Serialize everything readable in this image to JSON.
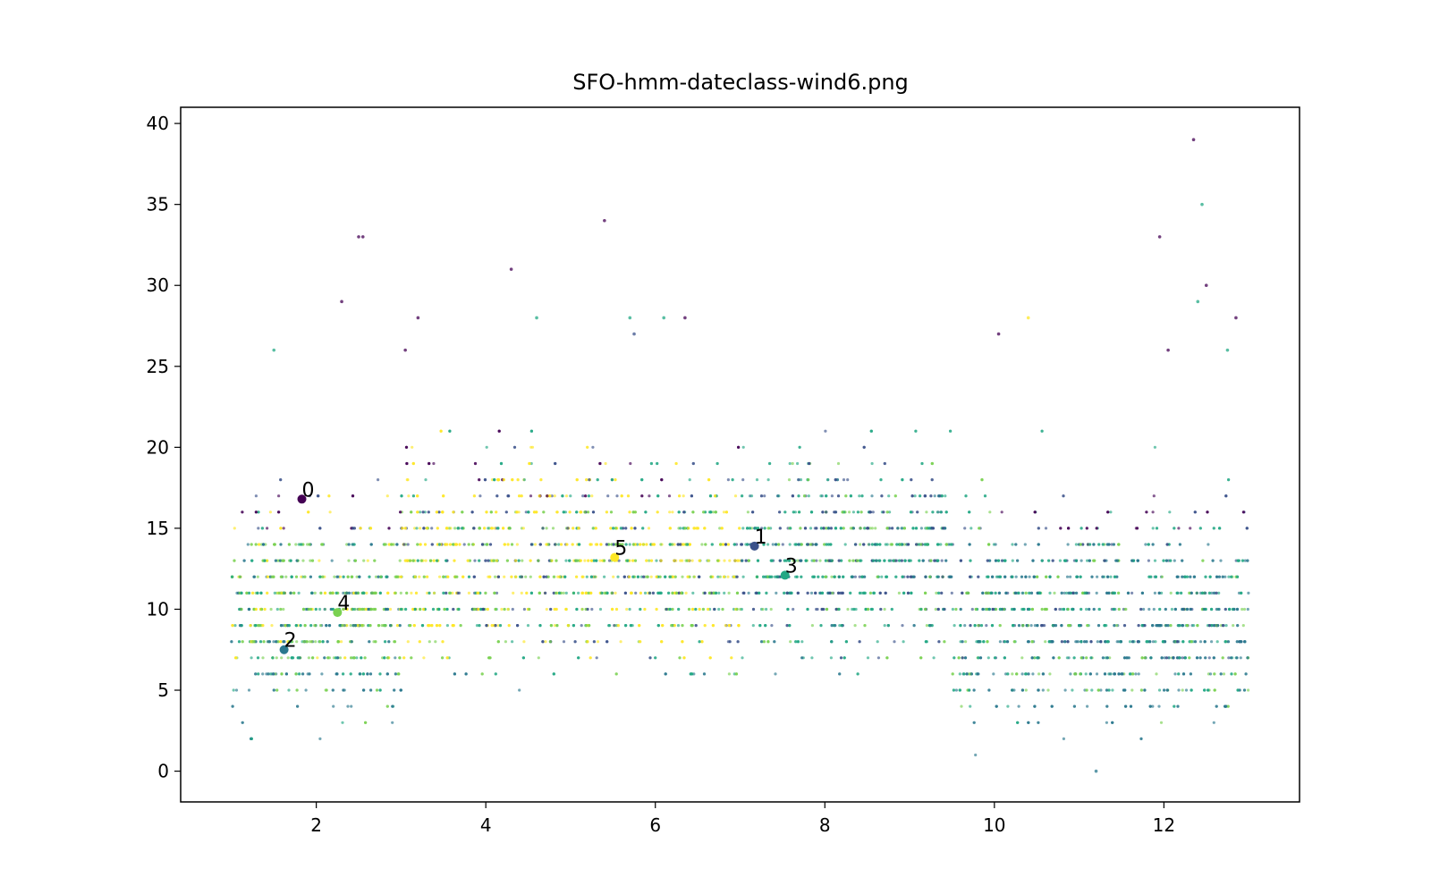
{
  "chart_data": {
    "type": "scatter",
    "title": "SFO-hmm-dateclass-wind6.png",
    "xlabel": "",
    "ylabel": "",
    "xlim": [
      0.4,
      13.6
    ],
    "ylim": [
      -1.9,
      41.0
    ],
    "x_ticks": [
      2,
      4,
      6,
      8,
      10,
      12
    ],
    "y_ticks": [
      0,
      5,
      10,
      15,
      20,
      25,
      30,
      35,
      40
    ],
    "grid": false,
    "legend": "none",
    "colormap": [
      "#440154",
      "#3b528b",
      "#21918c",
      "#1f9e89",
      "#5ec962",
      "#fde725"
    ],
    "cluster_colors": {
      "0": "#440154",
      "1": "#3b528b",
      "2": "#2a788e",
      "3": "#22a884",
      "4": "#7ad151",
      "5": "#fde725"
    },
    "point_cloud": {
      "x_range": [
        1.0,
        13.0
      ],
      "y_values": "integers 0-39",
      "description_note": ""
    },
    "outliers": [
      {
        "x": 12.35,
        "y": 39,
        "cluster": "0"
      },
      {
        "x": 12.45,
        "y": 35,
        "cluster": "3"
      },
      {
        "x": 5.4,
        "y": 34,
        "cluster": "0"
      },
      {
        "x": 2.5,
        "y": 33,
        "cluster": "0"
      },
      {
        "x": 2.55,
        "y": 33,
        "cluster": "0"
      },
      {
        "x": 11.95,
        "y": 33,
        "cluster": "0"
      },
      {
        "x": 4.3,
        "y": 31,
        "cluster": "0"
      },
      {
        "x": 12.5,
        "y": 30,
        "cluster": "0"
      },
      {
        "x": 2.3,
        "y": 29,
        "cluster": "0"
      },
      {
        "x": 12.4,
        "y": 29,
        "cluster": "3"
      },
      {
        "x": 3.2,
        "y": 28,
        "cluster": "0"
      },
      {
        "x": 4.6,
        "y": 28,
        "cluster": "3"
      },
      {
        "x": 5.7,
        "y": 28,
        "cluster": "3"
      },
      {
        "x": 6.1,
        "y": 28,
        "cluster": "3"
      },
      {
        "x": 6.35,
        "y": 28,
        "cluster": "0"
      },
      {
        "x": 10.4,
        "y": 28,
        "cluster": "5"
      },
      {
        "x": 12.85,
        "y": 28,
        "cluster": "0"
      },
      {
        "x": 5.75,
        "y": 27,
        "cluster": "1"
      },
      {
        "x": 10.05,
        "y": 27,
        "cluster": "0"
      },
      {
        "x": 1.5,
        "y": 26,
        "cluster": "3"
      },
      {
        "x": 3.05,
        "y": 26,
        "cluster": "0"
      },
      {
        "x": 12.05,
        "y": 26,
        "cluster": "0"
      },
      {
        "x": 12.75,
        "y": 26,
        "cluster": "3"
      },
      {
        "x": 11.2,
        "y": 0,
        "cluster": "2"
      }
    ],
    "centroids": [
      {
        "label": "0",
        "x": 1.83,
        "y": 16.8,
        "cluster": "0"
      },
      {
        "label": "1",
        "x": 7.17,
        "y": 13.9,
        "cluster": "1"
      },
      {
        "label": "2",
        "x": 1.62,
        "y": 7.5,
        "cluster": "2"
      },
      {
        "label": "3",
        "x": 7.53,
        "y": 12.1,
        "cluster": "3"
      },
      {
        "label": "4",
        "x": 2.25,
        "y": 9.8,
        "cluster": "4"
      },
      {
        "label": "5",
        "x": 5.52,
        "y": 13.2,
        "cluster": "5"
      }
    ]
  }
}
